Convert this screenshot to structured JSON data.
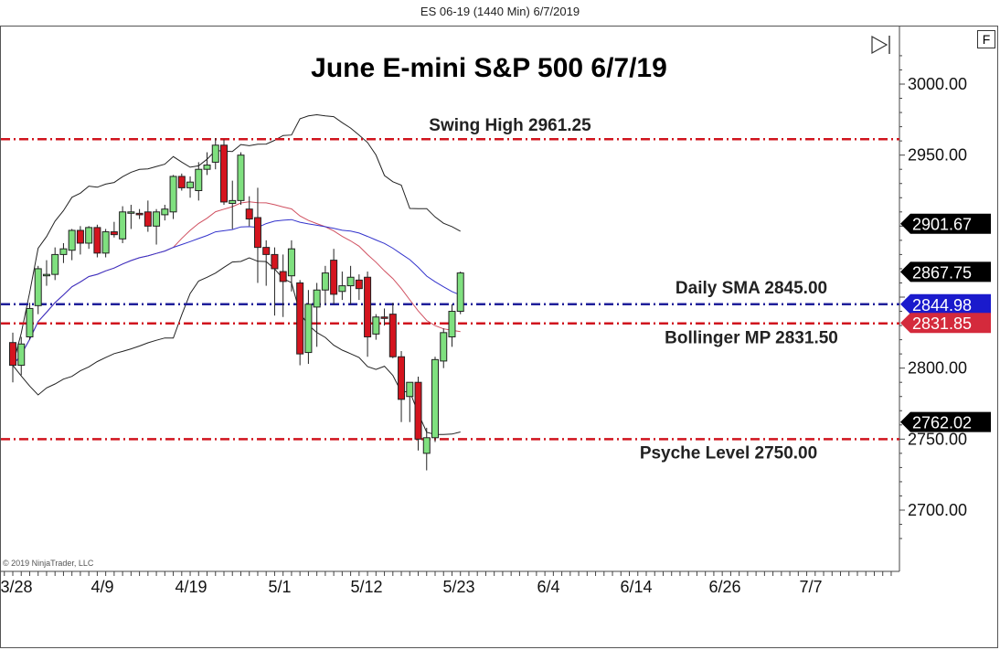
{
  "header": {
    "title": "ES 06-19 (1440 Min)  6/7/2019"
  },
  "toolbar": {
    "f_button": "F",
    "scroll_end": "▷|"
  },
  "copyright": "© 2019 NinjaTrader, LLC",
  "chart_data": {
    "type": "candlestick",
    "title": "June E-mini S&P 500 6/7/19",
    "ylim": [
      2660,
      3030
    ],
    "y_ticks": [
      3000,
      2950,
      2800,
      2750,
      2700
    ],
    "y_tick_labels": [
      "3000.00",
      "2950.00",
      "2800.00",
      "2750.00",
      "2700.00"
    ],
    "x_tick_labels": [
      "3/28",
      "4/9",
      "4/19",
      "5/1",
      "5/12",
      "5/23",
      "6/4",
      "6/14",
      "6/26",
      "7/7"
    ],
    "price_markers": [
      {
        "label": "2901.67",
        "value": 2901.67,
        "bg": "#000000",
        "fg": "#ffffff"
      },
      {
        "label": "2867.75",
        "value": 2867.75,
        "bg": "#000000",
        "fg": "#ffffff"
      },
      {
        "label": "2844.98",
        "value": 2844.98,
        "bg": "#1a1acc",
        "fg": "#ffffff"
      },
      {
        "label": "2831.85",
        "value": 2831.85,
        "bg": "#d42a3c",
        "fg": "#ffffff"
      },
      {
        "label": "2762.02",
        "value": 2762.02,
        "bg": "#000000",
        "fg": "#ffffff"
      }
    ],
    "levels": [
      {
        "name": "Swing High 2961.25",
        "value": 2961.25,
        "color": "#d0141e",
        "style": "dashdot"
      },
      {
        "name": "Daily SMA 2845.00",
        "value": 2845.0,
        "color": "#1f1f9a",
        "style": "dashdot"
      },
      {
        "name": "Bollinger MP 2831.50",
        "value": 2831.5,
        "color": "#d0141e",
        "style": "dashdot"
      },
      {
        "name": "Psyche Level 2750.00",
        "value": 2750.0,
        "color": "#d0141e",
        "style": "dashdot"
      }
    ],
    "candles": [
      {
        "date": "3/28",
        "open": 2818,
        "high": 2825,
        "low": 2790,
        "close": 2802
      },
      {
        "date": "3/29",
        "open": 2802,
        "high": 2822,
        "low": 2795,
        "close": 2817
      },
      {
        "date": "4/1",
        "open": 2822,
        "high": 2846,
        "low": 2820,
        "close": 2842
      },
      {
        "date": "4/2",
        "open": 2844,
        "high": 2872,
        "low": 2838,
        "close": 2870
      },
      {
        "date": "4/3",
        "open": 2865,
        "high": 2876,
        "low": 2858,
        "close": 2866
      },
      {
        "date": "4/4",
        "open": 2866,
        "high": 2885,
        "low": 2862,
        "close": 2880
      },
      {
        "date": "4/5",
        "open": 2880,
        "high": 2888,
        "low": 2874,
        "close": 2884
      },
      {
        "date": "4/8",
        "open": 2883,
        "high": 2898,
        "low": 2876,
        "close": 2897
      },
      {
        "date": "4/9",
        "open": 2897,
        "high": 2900,
        "low": 2880,
        "close": 2888
      },
      {
        "date": "4/10",
        "open": 2888,
        "high": 2900,
        "low": 2884,
        "close": 2899
      },
      {
        "date": "4/11",
        "open": 2899,
        "high": 2901,
        "low": 2878,
        "close": 2881
      },
      {
        "date": "4/12",
        "open": 2881,
        "high": 2898,
        "low": 2878,
        "close": 2896
      },
      {
        "date": "4/15",
        "open": 2896,
        "high": 2903,
        "low": 2892,
        "close": 2894
      },
      {
        "date": "4/16",
        "open": 2891,
        "high": 2914,
        "low": 2888,
        "close": 2910
      },
      {
        "date": "4/17",
        "open": 2910,
        "high": 2915,
        "low": 2898,
        "close": 2910
      },
      {
        "date": "4/18",
        "open": 2909,
        "high": 2912,
        "low": 2905,
        "close": 2908
      },
      {
        "date": "4/22",
        "open": 2910,
        "high": 2918,
        "low": 2896,
        "close": 2900
      },
      {
        "date": "4/23",
        "open": 2900,
        "high": 2912,
        "low": 2887,
        "close": 2910
      },
      {
        "date": "4/24",
        "open": 2908,
        "high": 2915,
        "low": 2904,
        "close": 2912
      },
      {
        "date": "4/25",
        "open": 2910,
        "high": 2936,
        "low": 2905,
        "close": 2935
      },
      {
        "date": "4/26",
        "open": 2935,
        "high": 2937,
        "low": 2925,
        "close": 2927
      },
      {
        "date": "4/29",
        "open": 2927,
        "high": 2935,
        "low": 2920,
        "close": 2931
      },
      {
        "date": "4/30",
        "open": 2925,
        "high": 2945,
        "low": 2918,
        "close": 2940
      },
      {
        "date": "5/1",
        "open": 2940,
        "high": 2952,
        "low": 2936,
        "close": 2943
      },
      {
        "date": "5/2",
        "open": 2945,
        "high": 2962,
        "low": 2940,
        "close": 2957
      },
      {
        "date": "5/3",
        "open": 2957,
        "high": 2961,
        "low": 2915,
        "close": 2917
      },
      {
        "date": "5/6",
        "open": 2916,
        "high": 2932,
        "low": 2898,
        "close": 2918
      },
      {
        "date": "5/7",
        "open": 2918,
        "high": 2952,
        "low": 2915,
        "close": 2950
      },
      {
        "date": "5/8",
        "open": 2912,
        "high": 2921,
        "low": 2900,
        "close": 2905
      },
      {
        "date": "5/9",
        "open": 2906,
        "high": 2927,
        "low": 2860,
        "close": 2885
      },
      {
        "date": "5/10",
        "open": 2885,
        "high": 2890,
        "low": 2858,
        "close": 2880
      },
      {
        "date": "5/13",
        "open": 2880,
        "high": 2885,
        "low": 2837,
        "close": 2870
      },
      {
        "date": "5/14",
        "open": 2868,
        "high": 2880,
        "low": 2836,
        "close": 2861
      },
      {
        "date": "5/15",
        "open": 2865,
        "high": 2890,
        "low": 2854,
        "close": 2884
      },
      {
        "date": "5/16",
        "open": 2860,
        "high": 2862,
        "low": 2802,
        "close": 2810
      },
      {
        "date": "5/17",
        "open": 2811,
        "high": 2855,
        "low": 2803,
        "close": 2845
      },
      {
        "date": "5/20",
        "open": 2843,
        "high": 2860,
        "low": 2815,
        "close": 2855
      },
      {
        "date": "5/21",
        "open": 2855,
        "high": 2872,
        "low": 2845,
        "close": 2867
      },
      {
        "date": "5/22",
        "open": 2876,
        "high": 2884,
        "low": 2845,
        "close": 2852
      },
      {
        "date": "5/23",
        "open": 2854,
        "high": 2868,
        "low": 2848,
        "close": 2858
      },
      {
        "date": "5/24",
        "open": 2858,
        "high": 2872,
        "low": 2845,
        "close": 2864
      },
      {
        "date": "5/28",
        "open": 2862,
        "high": 2866,
        "low": 2848,
        "close": 2856
      },
      {
        "date": "5/29",
        "open": 2864,
        "high": 2868,
        "low": 2808,
        "close": 2822
      },
      {
        "date": "5/30",
        "open": 2824,
        "high": 2838,
        "low": 2820,
        "close": 2836
      },
      {
        "date": "5/31",
        "open": 2836,
        "high": 2842,
        "low": 2830,
        "close": 2835
      },
      {
        "date": "6/3",
        "open": 2838,
        "high": 2846,
        "low": 2807,
        "close": 2808
      },
      {
        "date": "6/4",
        "open": 2808,
        "high": 2812,
        "low": 2762,
        "close": 2778
      },
      {
        "date": "6/5",
        "open": 2780,
        "high": 2790,
        "low": 2762,
        "close": 2790
      },
      {
        "date": "6/6",
        "open": 2790,
        "high": 2794,
        "low": 2742,
        "close": 2750
      },
      {
        "date": "6/7",
        "open": 2740,
        "high": 2758,
        "low": 2728,
        "close": 2751
      },
      {
        "date": "6/8",
        "open": 2751,
        "high": 2808,
        "low": 2748,
        "close": 2806
      },
      {
        "date": "6/9",
        "open": 2805,
        "high": 2828,
        "low": 2800,
        "close": 2825
      },
      {
        "date": "6/10",
        "open": 2822,
        "high": 2845,
        "low": 2815,
        "close": 2840
      },
      {
        "date": "6/11",
        "open": 2840,
        "high": 2868,
        "low": 2838,
        "close": 2867
      }
    ]
  }
}
